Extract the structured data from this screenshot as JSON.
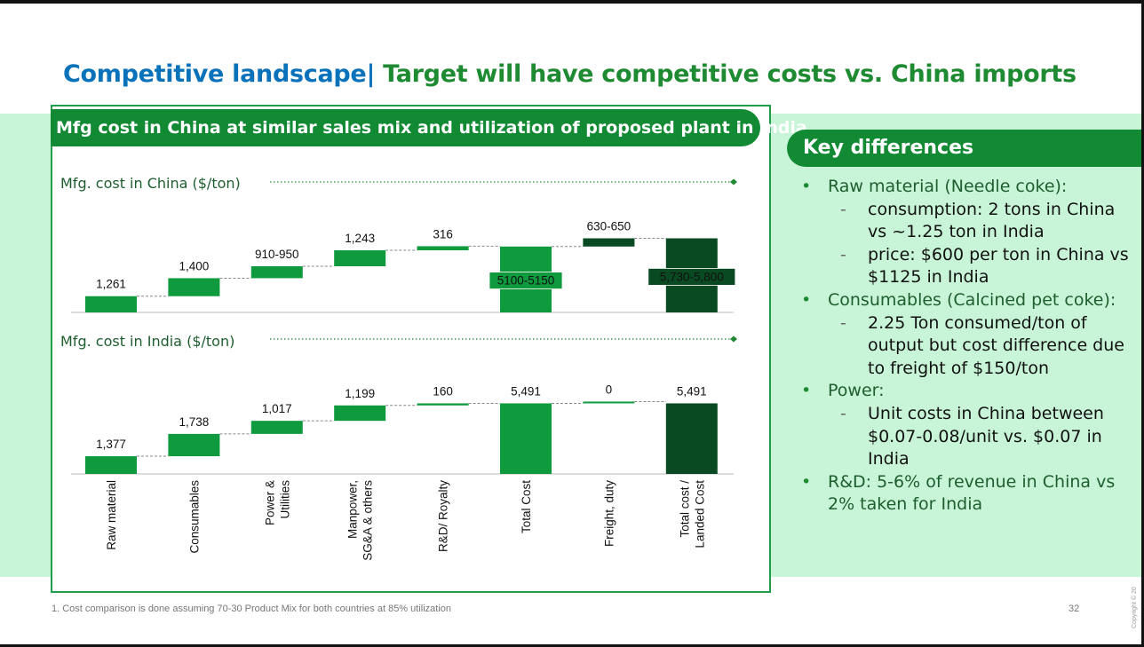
{
  "title": {
    "part1": "Competitive landscape",
    "separator": "|",
    "part2": "Target will have competitive costs vs. China imports"
  },
  "panel": {
    "header": "Mfg cost in China at similar sales mix and utilization of proposed plant in India"
  },
  "key_differences": {
    "header": "Key differences",
    "items": [
      {
        "text": "Raw material (Needle coke):",
        "subs": [
          "consumption: 2 tons in China vs ~1.25 ton in India",
          "price: $600 per ton in China vs $1125 in India"
        ]
      },
      {
        "text": "Consumables (Calcined pet coke):",
        "subs": [
          "2.25 Ton consumed/ton of output but cost difference due to freight of $150/ton"
        ]
      },
      {
        "text": "Power:",
        "subs": [
          "Unit costs in China between $0.07-0.08/unit vs. $0.07 in India"
        ]
      },
      {
        "text": "R&D: 5-6% of revenue in China vs 2% taken for India",
        "subs": []
      }
    ]
  },
  "footnote": "1. Cost comparison is done assuming 70-30 Product Mix for both countries at 85% utilization",
  "page_number": "32",
  "copyright": "Copyright © 20",
  "colors": {
    "bar_green": "#0f9a3e",
    "bar_dark": "#0a4a22",
    "header_green": "#128a34",
    "title_blue": "#0a72ba",
    "band_green": "#c8f5d8"
  },
  "chart_data": [
    {
      "type": "bar",
      "subtype": "waterfall",
      "title": "Mfg. cost in China ($/ton)",
      "categories": [
        "Raw material",
        "Consumables",
        "Power & Utilities",
        "Manpower, SG&A & others",
        "R&D/ Royalty",
        "Total Cost",
        "Freight, duty",
        "Total cost / Landed Cost"
      ],
      "values": [
        1261,
        1400,
        930,
        1243,
        316,
        5125,
        640,
        5765
      ],
      "labels": [
        "1,261",
        "1,400",
        "910-950",
        "1,243",
        "316",
        "5100-5150",
        "630-650",
        "5,730-5,800"
      ],
      "bar_kind": [
        "step",
        "step",
        "step",
        "step",
        "step",
        "total",
        "step",
        "total"
      ],
      "ylim": [
        0,
        5800
      ]
    },
    {
      "type": "bar",
      "subtype": "waterfall",
      "title": "Mfg. cost in India ($/ton)",
      "categories": [
        "Raw material",
        "Consumables",
        "Power & Utilities",
        "Manpower, SG&A & others",
        "R&D/ Royalty",
        "Total Cost",
        "Freight, duty",
        "Total cost / Landed Cost"
      ],
      "values": [
        1377,
        1738,
        1017,
        1199,
        160,
        5491,
        0,
        5491
      ],
      "labels": [
        "1,377",
        "1,738",
        "1,017",
        "1,199",
        "160",
        "5,491",
        "0",
        "5,491"
      ],
      "bar_kind": [
        "step",
        "step",
        "step",
        "step",
        "step",
        "total",
        "step",
        "total"
      ],
      "ylim": [
        0,
        5800
      ]
    }
  ],
  "category_labels": [
    [
      "Raw material"
    ],
    [
      "Consumables"
    ],
    [
      "Power &",
      "Utilities"
    ],
    [
      "Manpower,",
      "SG&A & others"
    ],
    [
      "R&D/ Royalty"
    ],
    [
      "Total Cost"
    ],
    [
      "Freight, duty"
    ],
    [
      "Total cost /",
      "Landed Cost"
    ]
  ]
}
